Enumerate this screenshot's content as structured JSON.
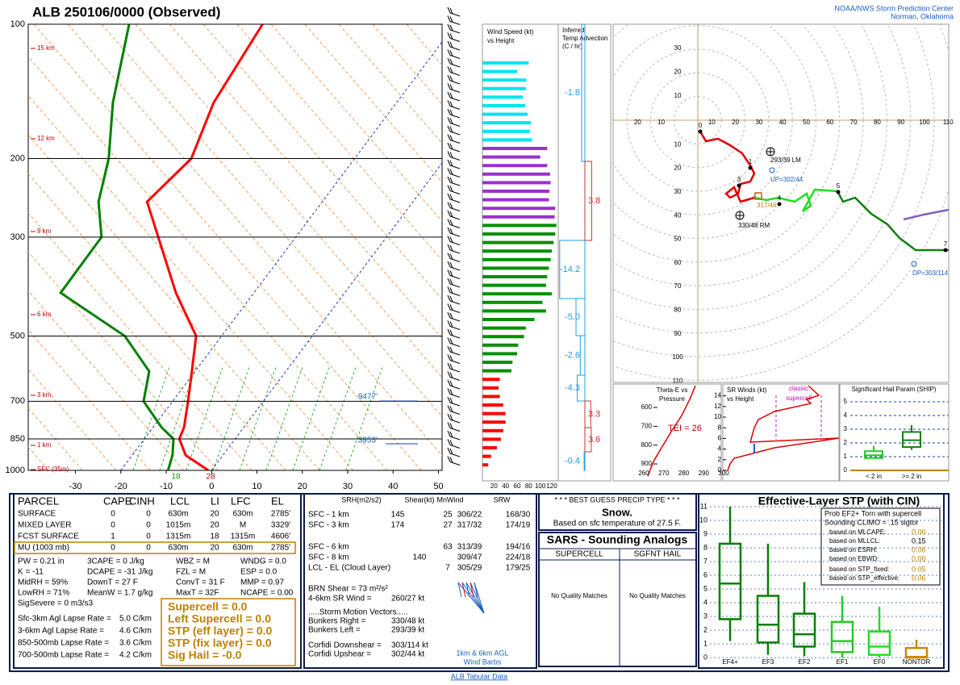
{
  "header": {
    "title": "ALB   250106/0000  (Observed)",
    "org": "NOAA/NWS Storm Prediction Center",
    "location": "Norman, Oklahoma"
  },
  "chart_data": [
    {
      "type": "skewt",
      "log_y": true,
      "pressure": [
        1000,
        925,
        850,
        800,
        700,
        600,
        500,
        400,
        300,
        250,
        200,
        150,
        100
      ],
      "series": [
        {
          "color": "#ff0000",
          "values": [
            -0.7,
            -8.2,
            -12.3,
            -13.2,
            -16.6,
            -20.7,
            -25.6,
            -37.2,
            -50.3,
            -58.6,
            -56,
            -60.3,
            -62.5
          ]
        },
        {
          "color": "#008000",
          "values": [
            -9.6,
            -11.1,
            -13.6,
            -18.2,
            -26.4,
            -30.1,
            -41.3,
            -62.6,
            -62.8,
            -69.3,
            -74.2,
            -82.5,
            -91.9
          ]
        }
      ],
      "xlim": [
        -40.4,
        50.8
      ],
      "xticks": [
        -30,
        -20,
        -10,
        0,
        10,
        20,
        30,
        40,
        50
      ],
      "ylim": [
        1000,
        100
      ],
      "yticks": [
        100,
        200,
        300,
        500,
        700,
        850,
        1000
      ],
      "height_labels": [
        "15 km",
        "12 km",
        "9 km",
        "6 km",
        "3 km",
        "1 km",
        "SFC (35m)"
      ],
      "surface_dewpoint": 18,
      "surface_temperature": 28,
      "level_labels": [
        "9477'",
        "3953'"
      ]
    },
    {
      "type": "hbar",
      "title": [
        "Wind Speed (kt)",
        "vs Height"
      ],
      "xlim": [
        0,
        120
      ],
      "xticks": [
        20,
        40,
        60,
        80,
        100,
        120
      ],
      "series": [
        {
          "color": "#00e5ee",
          "values": [
            80,
            60,
            76,
            75,
            70,
            74,
            78,
            84,
            82,
            86
          ]
        },
        {
          "color": "#9932cc",
          "values": [
            112,
            100,
            112,
            117,
            118,
            116,
            115,
            126,
            125
          ]
        },
        {
          "color": "#009000",
          "values": [
            128,
            126,
            123,
            120,
            118,
            115,
            112,
            110,
            120,
            104,
            110,
            90,
            75,
            72,
            62,
            60,
            52,
            50
          ]
        },
        {
          "color": "#ff0000",
          "values": [
            30,
            28,
            30,
            36,
            40,
            40,
            36,
            32,
            25,
            15,
            10
          ]
        }
      ]
    },
    {
      "type": "advection",
      "title": [
        "Inferred",
        "Temp Advection",
        "(C / hr)"
      ],
      "values": [
        -1.8,
        3.8,
        -14.2,
        -5,
        -2.6,
        -4.3,
        3.3,
        3.6,
        -0.4
      ],
      "value_labels": [
        "-1.8",
        "3.8",
        "-14.2",
        "-5.0",
        "-2.6",
        "-4.3",
        "3.3",
        "3.6",
        "-0.4"
      ]
    },
    {
      "type": "boxplot",
      "title": "Effective-Layer STP (with CIN)",
      "categories": [
        "EF4+",
        "EF3",
        "EF2",
        "EF1",
        "EF0",
        "NONTOR"
      ],
      "colors": [
        "#008000",
        "#008000",
        "#008000",
        "#22cc22",
        "#22dd22",
        "#cc8800"
      ],
      "boxes": [
        [
          1.2,
          2.8,
          5.4,
          8.3,
          11
        ],
        [
          0.2,
          1.1,
          2.4,
          4.5,
          8.3
        ],
        [
          0.1,
          0.8,
          1.7,
          3.2,
          5.5
        ],
        [
          0,
          0.4,
          1.2,
          2.6,
          4.5
        ],
        [
          0,
          0.2,
          0.8,
          1.9,
          3.7
        ],
        [
          0,
          0,
          0.05,
          0.7,
          1.3
        ]
      ],
      "ylim": [
        0,
        11.6
      ],
      "yticks": [
        0,
        1,
        2,
        3,
        4,
        5,
        6,
        7,
        8,
        9,
        10,
        11
      ]
    }
  ],
  "hodograph": {
    "rings": [
      10,
      20,
      30,
      40,
      50,
      60,
      70,
      80,
      90,
      100,
      110
    ],
    "km_labels": [
      "0",
      "1",
      "3",
      "4",
      "5",
      "7"
    ],
    "storm_labels": [
      "293/39 LM",
      "UP=302/44",
      "317/46",
      "330/48 RM",
      "DP=303/114"
    ]
  },
  "theta_e": {
    "title": [
      "Theta-E vs",
      "Pressure"
    ],
    "yticks": [
      600,
      700,
      800,
      900
    ],
    "xticks": [
      260,
      270,
      280,
      290,
      300
    ],
    "tei": "TEI = 26"
  },
  "sr_winds": {
    "title": [
      "SR Winds (kt)",
      "vs Height"
    ],
    "yticks": [
      0,
      2,
      4,
      6,
      8,
      10,
      12,
      14
    ],
    "note": [
      "classic",
      "supercell"
    ]
  },
  "ship": {
    "title": "Significant Hail Param (SHIP)",
    "yticks": [
      0,
      1,
      2,
      3,
      4,
      5
    ],
    "categories": [
      "< 2 in",
      ">= 2 in"
    ],
    "boxes": [
      [
        0.9,
        0.9,
        1.1,
        1.4,
        1.8
      ],
      [
        1.5,
        1.7,
        2.2,
        2.8,
        3.3
      ]
    ]
  },
  "parcel_table": {
    "headers": [
      "PARCEL",
      "CAPE",
      "CINH",
      "LCL",
      "LI",
      "LFC",
      "EL"
    ],
    "rows": [
      [
        "SURFACE",
        "0",
        "0",
        "630m",
        "20",
        "630m",
        "2785'"
      ],
      [
        "MIXED LAYER",
        "0",
        "0",
        "1015m",
        "20",
        "M",
        "3329'"
      ],
      [
        "FCST SURFACE",
        "1",
        "0",
        "1315m",
        "18",
        "1315m",
        "4606'"
      ],
      [
        "MU  (1003 mb)",
        "0",
        "0",
        "630m",
        "20",
        "630m",
        "2785'"
      ]
    ]
  },
  "indices": [
    [
      "PW = 0.21 in",
      "3CAPE = 0 J/kg",
      "WBZ = M",
      "WNDG = 0.0"
    ],
    [
      "K = -11",
      "DCAPE = -31 J/kg",
      "FZL = M",
      "ESP = 0.0"
    ],
    [
      "MidRH = 59%",
      "DownT = 27 F",
      "ConvT = 31 F",
      "MMP = 0.97"
    ],
    [
      "LowRH = 71%",
      "MeanW = 1.7 g/kg",
      "MaxT = 32F",
      "NCAPE = 0.00"
    ]
  ],
  "sig_severe": "SigSevere = 0 m3/s3",
  "lapse_rates": [
    [
      "Sfc-3km Agl Lapse Rate =",
      "5.0 C/km"
    ],
    [
      "3-6km Agl Lapse Rate =",
      "4.6 C/km"
    ],
    [
      "850-500mb Lapse Rate =",
      "3.6 C/km"
    ],
    [
      "700-500mb Lapse Rate =",
      "4.2 C/km"
    ]
  ],
  "composites": [
    "Supercell = 0.0",
    "Left Supercell = 0.0",
    "STP (eff layer) = 0.0",
    "STP (fix layer) = 0.0",
    "Sig Hail = -0.0"
  ],
  "kinematics": {
    "headers": [
      "SRH(m2/s2)",
      "Shear(kt)",
      "MnWind",
      "SRW"
    ],
    "rows": [
      [
        "SFC - 1 km",
        "145",
        "25",
        "306/22",
        "168/30"
      ],
      [
        "SFC - 3 km",
        "174",
        "27",
        "317/32",
        "174/19"
      ],
      [
        "SFC - 6 km",
        "63",
        "313/39",
        "194/16"
      ],
      [
        "SFC - 8 km",
        "140",
        "309/47",
        "224/18"
      ],
      [
        "LCL - EL (Cloud Layer)",
        "7",
        "305/29",
        "179/25"
      ]
    ],
    "brn": "BRN Shear =  73 m²/s²",
    "sr_wind_46": [
      "4-6km SR Wind =",
      "260/27 kt"
    ],
    "storm_heading": ".....Storm Motion Vectors.....",
    "vectors": [
      [
        "Bunkers Right =",
        "330/48 kt"
      ],
      [
        "Bunkers Left =",
        "293/39 kt"
      ],
      [
        "Corfidi Downshear =",
        "303/114 kt"
      ],
      [
        "Corfidi Upshear =",
        "302/44 kt"
      ]
    ],
    "barb_note": [
      "1km & 6km AGL",
      "Wind Barbs"
    ]
  },
  "precip": {
    "heading": "* * * BEST GUESS PRECIP TYPE * * *",
    "type": "Snow.",
    "basis": "Based on sfc temperature of 27.5 F."
  },
  "sars": {
    "title": "SARS - Sounding Analogs",
    "columns": [
      "SUPERCELL",
      "SGFNT HAIL"
    ],
    "matches": [
      "No Quality Matches",
      "No Quality Matches"
    ]
  },
  "stp_legend": {
    "lines": [
      "Prob EF2+ Torn with supercell",
      "Sounding CLIMO = .15 sigtor"
    ],
    "rows": [
      [
        "based on MLCAPE:",
        "0.00"
      ],
      [
        "based on MLLCL:",
        "0.15"
      ],
      [
        "based on ESRH:",
        "0.06"
      ],
      [
        "based on EBWD:",
        "0.00"
      ],
      [
        "based on STP_fixed:",
        "0.05"
      ],
      [
        "based on STP_effective:",
        "0.06"
      ]
    ]
  },
  "footer": "ALB Tabular Data"
}
